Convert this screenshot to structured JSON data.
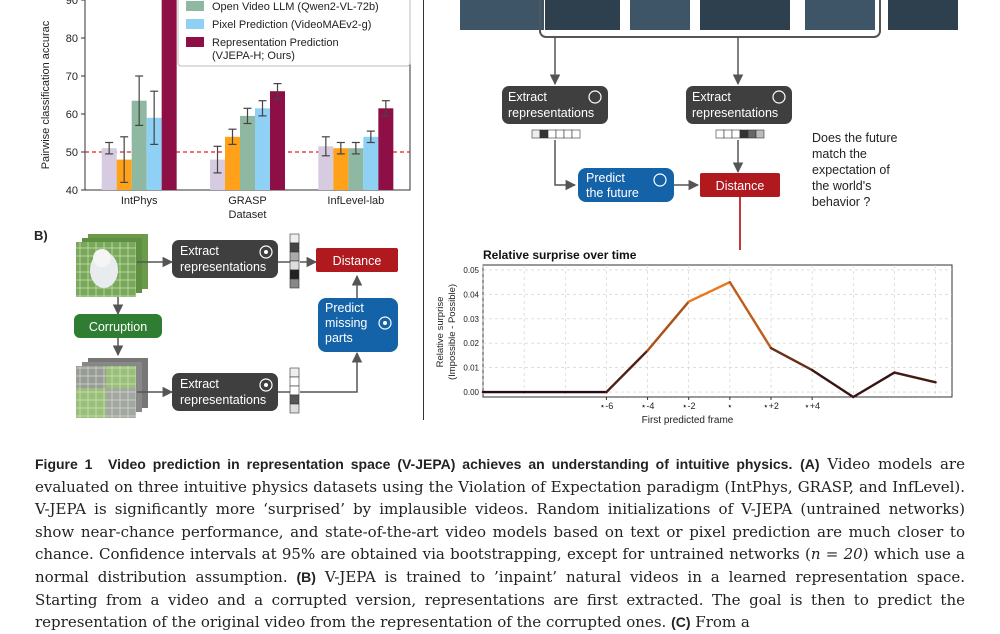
{
  "panel_a": {
    "ylabel": "Pairwise classification accurac",
    "xlabel": "Dataset",
    "y_ticks": [
      "40",
      "50",
      "60",
      "70",
      "80",
      "90"
    ],
    "legend": [
      {
        "label": "Open Video LLM (Qwen2-VL-72b)",
        "color": "#8fb8a2"
      },
      {
        "label": "Pixel Prediction (VideoMAEv2-g)",
        "color": "#8fd0f5"
      },
      {
        "label": "Representation Prediction",
        "label2": "(VJEPA-H; Ours)",
        "color": "#8e0f45"
      }
    ],
    "chance_line": 50,
    "colors": [
      "#d6cbe0",
      "#ffa21a",
      "#8fb8a2",
      "#8fd0f5",
      "#8e0f45"
    ]
  },
  "chart_data": [
    {
      "type": "bar",
      "title": "",
      "xlabel": "Dataset",
      "ylabel": "Pairwise classification accurac",
      "ylim": [
        40,
        92
      ],
      "categories": [
        "IntPhys",
        "GRASP",
        "InfLevel-lab"
      ],
      "series": [
        {
          "values": [
            51,
            48,
            51.5
          ]
        },
        {
          "values": [
            48,
            54,
            51
          ]
        },
        {
          "name": "Open Video LLM (Qwen2-VL-72b)",
          "values": [
            63.5,
            59.5,
            51
          ]
        },
        {
          "name": "Pixel Prediction (VideoMAEv2-g)",
          "values": [
            59,
            61.5,
            54
          ]
        },
        {
          "name": "Representation Prediction (VJEPA-H; Ours)",
          "values": [
            92,
            66,
            61.5
          ]
        }
      ],
      "errors": [
        [
          1.5,
          3.5,
          2.5
        ],
        [
          6,
          2,
          1.5
        ],
        [
          6.5,
          2,
          1.5
        ],
        [
          7,
          2,
          1.5
        ],
        [
          0,
          2,
          2
        ]
      ],
      "grid": false
    },
    {
      "type": "line",
      "title": "Relative surprise over time",
      "xlabel": "First predicted frame",
      "ylabel": "Relative surprise (Impossible - Possible)",
      "x_ticks": [
        "⋆-6",
        "⋆-4",
        "⋆-2",
        "⋆",
        "⋆+2",
        "⋆+4"
      ],
      "y_ticks": [
        "0.00",
        "0.01",
        "0.02",
        "0.03",
        "0.04",
        "0.05"
      ],
      "ylim": [
        -0.002,
        0.052
      ],
      "x": [
        -12,
        -10,
        -8,
        -6,
        -4,
        -2,
        0,
        2,
        4,
        6,
        8,
        10
      ],
      "y": [
        0.0,
        0.0,
        0.0,
        0.0,
        0.017,
        0.037,
        0.045,
        0.018,
        0.009,
        -0.002,
        0.008,
        0.004
      ],
      "grid": true
    }
  ],
  "panel_b": {
    "label": "B)",
    "extract1": [
      "Extract",
      "representations"
    ],
    "extract2": [
      "Extract",
      "representations"
    ],
    "corruption": "Corruption",
    "distance": "Distance",
    "predict": [
      "Predict",
      "missing",
      "parts"
    ]
  },
  "panel_c": {
    "extract_left": [
      "Extract",
      "representations"
    ],
    "extract_right": [
      "Extract",
      "representations"
    ],
    "predict": [
      "Predict",
      "the future"
    ],
    "distance": "Distance",
    "question": [
      "Does the future",
      "match the",
      "expectation of",
      "the world's",
      "behavior ?"
    ],
    "chart_title": "Relative surprise over time"
  },
  "caption": {
    "fig_label": "Figure 1",
    "fig_title": "Video prediction in representation space (V-JEPA) achieves an understanding of intuitive physics.",
    "a_label": "(A)",
    "a_text": "Video models are evaluated on three intuitive physics datasets using the Violation of Expectation paradigm (IntPhys, GRASP, and InfLevel). V-JEPA is significantly more ‘surprised’ by implausible videos. Random initializations of V-JEPA (untrained networks) show near-chance performance, and state-of-the-art video models based on text or pixel prediction are much closer to chance. Confidence intervals at 95% are obtained via bootstrapping, except for untrained networks (",
    "n_text": "n = 20",
    "a_text2": ") which use a normal distribution assumption.",
    "b_label": "(B)",
    "b_text": "V-JEPA is trained to ’inpaint’ natural videos in a learned representation space. Starting from a video and a corrupted version, representations are first extracted. The goal is then to predict the representation of the original video from the representation of the corrupted ones.",
    "c_label": "(C)",
    "c_text": "From a"
  }
}
